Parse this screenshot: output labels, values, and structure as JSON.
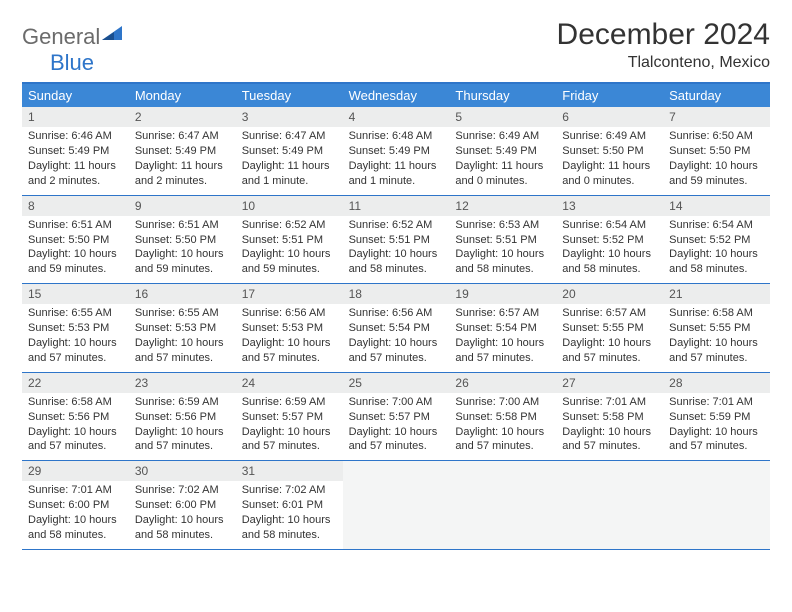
{
  "logo": {
    "word1": "General",
    "word2": "Blue"
  },
  "title": "December 2024",
  "location": "Tlalconteno, Mexico",
  "day_headers": [
    "Sunday",
    "Monday",
    "Tuesday",
    "Wednesday",
    "Thursday",
    "Friday",
    "Saturday"
  ],
  "colors": {
    "header_bg": "#3b87d6",
    "border": "#2e75c9",
    "daynum_bg": "#eceded",
    "text": "#333333",
    "logo_gray": "#6b6b6b",
    "logo_blue": "#2e75c9"
  },
  "weeks": [
    [
      {
        "n": "1",
        "sunrise": "6:46 AM",
        "sunset": "5:49 PM",
        "daylight": "11 hours and 2 minutes."
      },
      {
        "n": "2",
        "sunrise": "6:47 AM",
        "sunset": "5:49 PM",
        "daylight": "11 hours and 2 minutes."
      },
      {
        "n": "3",
        "sunrise": "6:47 AM",
        "sunset": "5:49 PM",
        "daylight": "11 hours and 1 minute."
      },
      {
        "n": "4",
        "sunrise": "6:48 AM",
        "sunset": "5:49 PM",
        "daylight": "11 hours and 1 minute."
      },
      {
        "n": "5",
        "sunrise": "6:49 AM",
        "sunset": "5:49 PM",
        "daylight": "11 hours and 0 minutes."
      },
      {
        "n": "6",
        "sunrise": "6:49 AM",
        "sunset": "5:50 PM",
        "daylight": "11 hours and 0 minutes."
      },
      {
        "n": "7",
        "sunrise": "6:50 AM",
        "sunset": "5:50 PM",
        "daylight": "10 hours and 59 minutes."
      }
    ],
    [
      {
        "n": "8",
        "sunrise": "6:51 AM",
        "sunset": "5:50 PM",
        "daylight": "10 hours and 59 minutes."
      },
      {
        "n": "9",
        "sunrise": "6:51 AM",
        "sunset": "5:50 PM",
        "daylight": "10 hours and 59 minutes."
      },
      {
        "n": "10",
        "sunrise": "6:52 AM",
        "sunset": "5:51 PM",
        "daylight": "10 hours and 59 minutes."
      },
      {
        "n": "11",
        "sunrise": "6:52 AM",
        "sunset": "5:51 PM",
        "daylight": "10 hours and 58 minutes."
      },
      {
        "n": "12",
        "sunrise": "6:53 AM",
        "sunset": "5:51 PM",
        "daylight": "10 hours and 58 minutes."
      },
      {
        "n": "13",
        "sunrise": "6:54 AM",
        "sunset": "5:52 PM",
        "daylight": "10 hours and 58 minutes."
      },
      {
        "n": "14",
        "sunrise": "6:54 AM",
        "sunset": "5:52 PM",
        "daylight": "10 hours and 58 minutes."
      }
    ],
    [
      {
        "n": "15",
        "sunrise": "6:55 AM",
        "sunset": "5:53 PM",
        "daylight": "10 hours and 57 minutes."
      },
      {
        "n": "16",
        "sunrise": "6:55 AM",
        "sunset": "5:53 PM",
        "daylight": "10 hours and 57 minutes."
      },
      {
        "n": "17",
        "sunrise": "6:56 AM",
        "sunset": "5:53 PM",
        "daylight": "10 hours and 57 minutes."
      },
      {
        "n": "18",
        "sunrise": "6:56 AM",
        "sunset": "5:54 PM",
        "daylight": "10 hours and 57 minutes."
      },
      {
        "n": "19",
        "sunrise": "6:57 AM",
        "sunset": "5:54 PM",
        "daylight": "10 hours and 57 minutes."
      },
      {
        "n": "20",
        "sunrise": "6:57 AM",
        "sunset": "5:55 PM",
        "daylight": "10 hours and 57 minutes."
      },
      {
        "n": "21",
        "sunrise": "6:58 AM",
        "sunset": "5:55 PM",
        "daylight": "10 hours and 57 minutes."
      }
    ],
    [
      {
        "n": "22",
        "sunrise": "6:58 AM",
        "sunset": "5:56 PM",
        "daylight": "10 hours and 57 minutes."
      },
      {
        "n": "23",
        "sunrise": "6:59 AM",
        "sunset": "5:56 PM",
        "daylight": "10 hours and 57 minutes."
      },
      {
        "n": "24",
        "sunrise": "6:59 AM",
        "sunset": "5:57 PM",
        "daylight": "10 hours and 57 minutes."
      },
      {
        "n": "25",
        "sunrise": "7:00 AM",
        "sunset": "5:57 PM",
        "daylight": "10 hours and 57 minutes."
      },
      {
        "n": "26",
        "sunrise": "7:00 AM",
        "sunset": "5:58 PM",
        "daylight": "10 hours and 57 minutes."
      },
      {
        "n": "27",
        "sunrise": "7:01 AM",
        "sunset": "5:58 PM",
        "daylight": "10 hours and 57 minutes."
      },
      {
        "n": "28",
        "sunrise": "7:01 AM",
        "sunset": "5:59 PM",
        "daylight": "10 hours and 57 minutes."
      }
    ],
    [
      {
        "n": "29",
        "sunrise": "7:01 AM",
        "sunset": "6:00 PM",
        "daylight": "10 hours and 58 minutes."
      },
      {
        "n": "30",
        "sunrise": "7:02 AM",
        "sunset": "6:00 PM",
        "daylight": "10 hours and 58 minutes."
      },
      {
        "n": "31",
        "sunrise": "7:02 AM",
        "sunset": "6:01 PM",
        "daylight": "10 hours and 58 minutes."
      },
      null,
      null,
      null,
      null
    ]
  ],
  "labels": {
    "sunrise": "Sunrise: ",
    "sunset": "Sunset: ",
    "daylight": "Daylight: "
  }
}
